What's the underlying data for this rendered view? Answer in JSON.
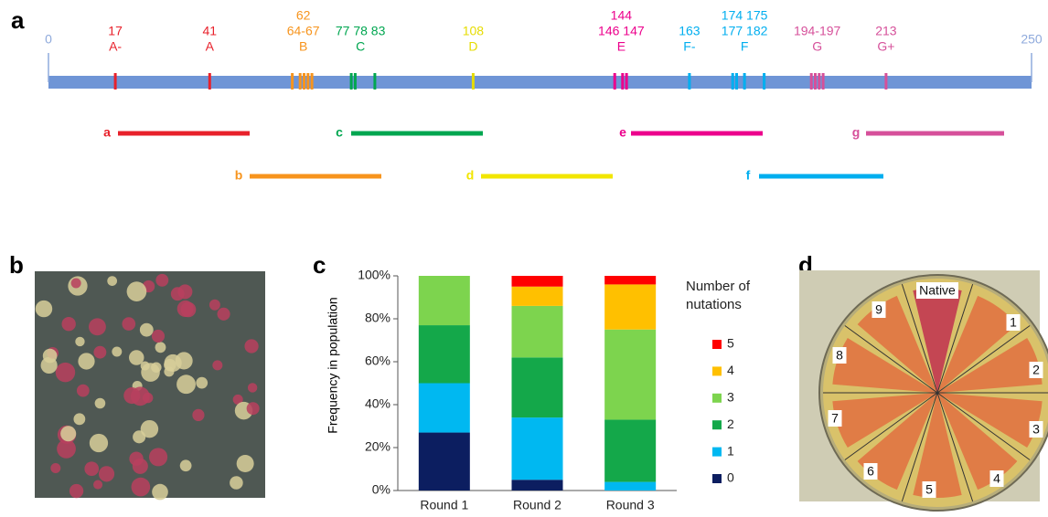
{
  "panel_labels": [
    "a",
    "b",
    "c",
    "d"
  ],
  "gene_map": {
    "scale": [
      0,
      250
    ],
    "bar_color": "#6f95d6",
    "sites": [
      {
        "numbers": [
          "17"
        ],
        "group": "A-",
        "color": "#e8212b",
        "positions": [
          17
        ]
      },
      {
        "numbers": [
          "41"
        ],
        "group": "A",
        "color": "#e8212b",
        "positions": [
          41
        ]
      },
      {
        "numbers": [
          "62",
          "64-67"
        ],
        "group": "B",
        "color": "#f7941d",
        "positions": [
          62,
          64,
          65,
          66,
          67
        ]
      },
      {
        "numbers": [
          "77 78 83"
        ],
        "group": "C",
        "color": "#00a650",
        "positions": [
          77,
          78,
          83
        ]
      },
      {
        "numbers": [
          "108"
        ],
        "group": "D",
        "color": "#e6dc00",
        "positions": [
          108
        ]
      },
      {
        "numbers": [
          "144",
          "146 147"
        ],
        "group": "E",
        "color": "#ec008c",
        "positions": [
          144,
          146,
          147
        ]
      },
      {
        "numbers": [
          "163"
        ],
        "group": "F-",
        "color": "#00aeef",
        "positions": [
          163
        ]
      },
      {
        "numbers": [
          "174 175",
          "177 182"
        ],
        "group": "F",
        "color": "#00aeef",
        "positions": [
          174,
          175,
          177,
          182
        ]
      },
      {
        "numbers": [
          "194-197"
        ],
        "group": "G",
        "color": "#d6509a",
        "positions": [
          194,
          195,
          196,
          197
        ]
      },
      {
        "numbers": [
          "213"
        ],
        "group": "G+",
        "color": "#d6509a",
        "positions": [
          213
        ]
      }
    ],
    "fragments": [
      {
        "label": "a",
        "color": "#e8212b"
      },
      {
        "label": "b",
        "color": "#f7941d"
      },
      {
        "label": "c",
        "color": "#00a650"
      },
      {
        "label": "d",
        "color": "#f2e600"
      },
      {
        "label": "e",
        "color": "#ec008c"
      },
      {
        "label": "f",
        "color": "#00aeef"
      },
      {
        "label": "g",
        "color": "#d6509a"
      }
    ]
  },
  "chart_data": {
    "type": "stacked_bar",
    "ylabel": "Frequency in population",
    "categories": [
      "Round 1",
      "Round 2",
      "Round 3"
    ],
    "ylim": [
      0,
      100
    ],
    "yticks": [
      {
        "value": 0,
        "label": "0%"
      },
      {
        "value": 20,
        "label": "20%"
      },
      {
        "value": 40,
        "label": "40%"
      },
      {
        "value": 60,
        "label": "60%"
      },
      {
        "value": 80,
        "label": "80%"
      },
      {
        "value": 100,
        "label": "100%"
      }
    ],
    "legend_title": "Number of nutations",
    "series": [
      {
        "name": "0",
        "color": "#0c1e60",
        "values": [
          27,
          5,
          0
        ]
      },
      {
        "name": "1",
        "color": "#00b8f1",
        "values": [
          23,
          29,
          4
        ]
      },
      {
        "name": "2",
        "color": "#14a84a",
        "values": [
          27,
          28,
          29
        ]
      },
      {
        "name": "3",
        "color": "#7dd44e",
        "values": [
          23,
          24,
          42
        ]
      },
      {
        "name": "4",
        "color": "#ffc000",
        "values": [
          0,
          9,
          21
        ]
      },
      {
        "name": "5",
        "color": "#ff0000",
        "values": [
          0,
          5,
          4
        ]
      }
    ]
  },
  "plate": {
    "labels": [
      "Native",
      "1",
      "2",
      "3",
      "4",
      "5",
      "6",
      "7",
      "8",
      "9"
    ]
  }
}
